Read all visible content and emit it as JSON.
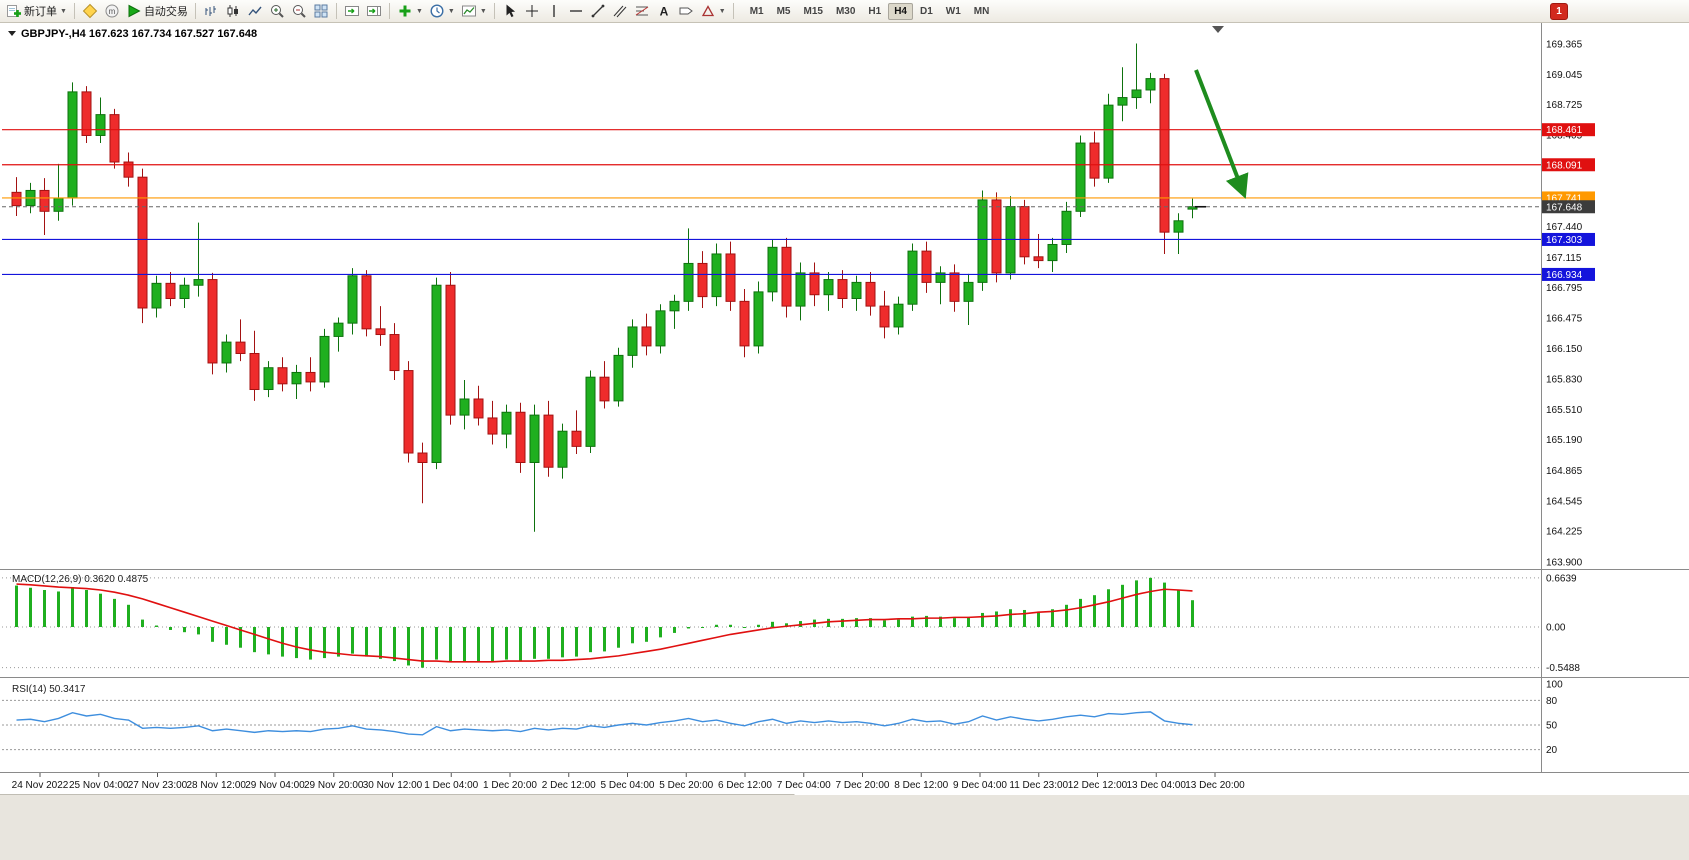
{
  "toolbar": {
    "new_order": "新订单",
    "auto_trading": "自动交易",
    "timeframes": [
      "M1",
      "M5",
      "M15",
      "M30",
      "H1",
      "H4",
      "D1",
      "W1",
      "MN"
    ],
    "active_timeframe": "H4",
    "notification_count": "1"
  },
  "chart": {
    "symbol": "GBPJPY-",
    "period": "H4",
    "title_overlay": "GBPJPY-,H4 167.623 167.734 167.527 167.648"
  },
  "chart_data": {
    "type": "candlestick",
    "symbol": "GBPJPY-",
    "period": "H4",
    "ohlc_current": {
      "open": 167.623,
      "high": 167.734,
      "low": 167.527,
      "close": 167.648
    },
    "colors": {
      "up": "#1FAF1F",
      "up_dark": "#0E720E",
      "down": "#EE2C2C",
      "down_dark": "#A31212",
      "line_red": "#E01010",
      "line_blue": "#1414DC",
      "line_orange": "#FF9900",
      "current_price": "#3C3C3C",
      "macd_bar": "#1FAF1F",
      "macd_signal": "#E01010",
      "rsi_line": "#3E8EDE",
      "arrow": "#1E8C1E"
    },
    "hlines": [
      {
        "price": 168.461,
        "label": "168.461",
        "color": "#E01010"
      },
      {
        "price": 168.091,
        "label": "168.091",
        "color": "#E01010"
      },
      {
        "price": 167.741,
        "label": "167.741",
        "color": "#FF9900"
      },
      {
        "price": 167.303,
        "label": "167.303",
        "color": "#1414DC"
      },
      {
        "price": 166.934,
        "label": "166.934",
        "color": "#1414DC"
      }
    ],
    "current_price": {
      "price": 167.648,
      "label": "167.648"
    },
    "price_axis_labels": [
      169.365,
      169.045,
      168.725,
      168.405,
      167.44,
      167.115,
      166.795,
      166.475,
      166.15,
      165.83,
      165.51,
      165.19,
      164.865,
      164.545,
      164.225,
      163.9
    ],
    "time_labels": [
      "24 Nov 2022",
      "25 Nov 04:00",
      "27 Nov 23:00",
      "28 Nov 12:00",
      "29 Nov 04:00",
      "29 Nov 20:00",
      "30 Nov 12:00",
      "1 Dec 04:00",
      "1 Dec 20:00",
      "2 Dec 12:00",
      "5 Dec 04:00",
      "5 Dec 20:00",
      "6 Dec 12:00",
      "7 Dec 04:00",
      "7 Dec 20:00",
      "8 Dec 12:00",
      "9 Dec 04:00",
      "11 Dec 23:00",
      "12 Dec 12:00",
      "13 Dec 04:00",
      "13 Dec 20:00"
    ],
    "candles": [
      [
        167.8,
        167.96,
        167.55,
        167.66
      ],
      [
        167.66,
        167.9,
        167.58,
        167.82
      ],
      [
        167.82,
        167.95,
        167.35,
        167.6
      ],
      [
        167.6,
        168.1,
        167.5,
        167.74
      ],
      [
        167.74,
        168.96,
        167.66,
        168.86
      ],
      [
        168.86,
        168.92,
        168.32,
        168.4
      ],
      [
        168.4,
        168.8,
        168.32,
        168.62
      ],
      [
        168.62,
        168.68,
        168.05,
        168.12
      ],
      [
        168.12,
        168.22,
        167.86,
        167.96
      ],
      [
        167.96,
        168.05,
        166.42,
        166.58
      ],
      [
        166.58,
        166.92,
        166.48,
        166.84
      ],
      [
        166.84,
        166.96,
        166.6,
        166.68
      ],
      [
        166.68,
        166.9,
        166.58,
        166.82
      ],
      [
        166.82,
        167.48,
        166.7,
        166.88
      ],
      [
        166.88,
        166.95,
        165.88,
        166.0
      ],
      [
        166.0,
        166.3,
        165.9,
        166.22
      ],
      [
        166.22,
        166.46,
        166.02,
        166.1
      ],
      [
        166.1,
        166.34,
        165.6,
        165.72
      ],
      [
        165.72,
        166.02,
        165.64,
        165.95
      ],
      [
        165.95,
        166.06,
        165.7,
        165.78
      ],
      [
        165.78,
        165.98,
        165.62,
        165.9
      ],
      [
        165.9,
        166.06,
        165.7,
        165.8
      ],
      [
        165.8,
        166.36,
        165.74,
        166.28
      ],
      [
        166.28,
        166.48,
        166.12,
        166.42
      ],
      [
        166.42,
        167.0,
        166.3,
        166.92
      ],
      [
        166.92,
        166.98,
        166.28,
        166.36
      ],
      [
        166.36,
        166.6,
        166.18,
        166.3
      ],
      [
        166.3,
        166.42,
        165.82,
        165.92
      ],
      [
        165.92,
        166.02,
        164.95,
        165.05
      ],
      [
        165.05,
        165.16,
        164.52,
        164.95
      ],
      [
        164.95,
        166.9,
        164.88,
        166.82
      ],
      [
        166.82,
        166.96,
        165.35,
        165.45
      ],
      [
        165.45,
        165.82,
        165.3,
        165.62
      ],
      [
        165.62,
        165.76,
        165.34,
        165.42
      ],
      [
        165.42,
        165.6,
        165.14,
        165.25
      ],
      [
        165.25,
        165.56,
        165.1,
        165.48
      ],
      [
        165.48,
        165.58,
        164.84,
        164.95
      ],
      [
        164.95,
        165.56,
        164.22,
        165.45
      ],
      [
        165.45,
        165.6,
        164.8,
        164.9
      ],
      [
        164.9,
        165.36,
        164.78,
        165.28
      ],
      [
        165.28,
        165.5,
        165.04,
        165.12
      ],
      [
        165.12,
        165.92,
        165.05,
        165.85
      ],
      [
        165.85,
        166.02,
        165.52,
        165.6
      ],
      [
        165.6,
        166.16,
        165.54,
        166.08
      ],
      [
        166.08,
        166.46,
        165.95,
        166.38
      ],
      [
        166.38,
        166.52,
        166.08,
        166.18
      ],
      [
        166.18,
        166.62,
        166.1,
        166.55
      ],
      [
        166.55,
        166.72,
        166.36,
        166.65
      ],
      [
        166.65,
        167.42,
        166.55,
        167.05
      ],
      [
        167.05,
        167.18,
        166.58,
        166.7
      ],
      [
        166.7,
        167.26,
        166.6,
        167.15
      ],
      [
        167.15,
        167.28,
        166.55,
        166.65
      ],
      [
        166.65,
        166.78,
        166.06,
        166.18
      ],
      [
        166.18,
        166.86,
        166.1,
        166.75
      ],
      [
        166.75,
        167.3,
        166.65,
        167.22
      ],
      [
        167.22,
        167.32,
        166.48,
        166.6
      ],
      [
        166.6,
        167.06,
        166.45,
        166.95
      ],
      [
        166.95,
        167.06,
        166.6,
        166.72
      ],
      [
        166.72,
        166.96,
        166.55,
        166.88
      ],
      [
        166.88,
        166.98,
        166.58,
        166.68
      ],
      [
        166.68,
        166.92,
        166.55,
        166.85
      ],
      [
        166.85,
        166.96,
        166.5,
        166.6
      ],
      [
        166.6,
        166.76,
        166.26,
        166.38
      ],
      [
        166.38,
        166.7,
        166.3,
        166.62
      ],
      [
        166.62,
        167.26,
        166.55,
        167.18
      ],
      [
        167.18,
        167.28,
        166.74,
        166.85
      ],
      [
        166.85,
        167.02,
        166.62,
        166.95
      ],
      [
        166.95,
        167.04,
        166.54,
        166.65
      ],
      [
        166.65,
        166.94,
        166.4,
        166.85
      ],
      [
        166.85,
        167.82,
        166.76,
        167.72
      ],
      [
        167.72,
        167.8,
        166.85,
        166.95
      ],
      [
        166.95,
        167.76,
        166.88,
        167.65
      ],
      [
        167.65,
        167.72,
        167.04,
        167.12
      ],
      [
        167.12,
        167.36,
        167.0,
        167.08
      ],
      [
        167.08,
        167.32,
        166.96,
        167.25
      ],
      [
        167.25,
        167.7,
        167.16,
        167.6
      ],
      [
        167.6,
        168.4,
        167.54,
        168.32
      ],
      [
        168.32,
        168.44,
        167.86,
        167.95
      ],
      [
        167.95,
        168.84,
        167.9,
        168.72
      ],
      [
        168.72,
        169.12,
        168.55,
        168.8
      ],
      [
        168.8,
        169.37,
        168.68,
        168.88
      ],
      [
        168.88,
        169.06,
        168.74,
        169.0
      ],
      [
        169.0,
        169.05,
        167.15,
        167.38
      ],
      [
        167.38,
        167.58,
        167.15,
        167.5
      ],
      [
        167.623,
        167.734,
        167.527,
        167.648
      ]
    ],
    "macd": {
      "label": "MACD(12,26,9)",
      "value_main": "0.3620",
      "value_signal": "0.4875",
      "scale": [
        "0.6639",
        "0.00",
        "-0.5488"
      ],
      "scale_values": [
        0.6639,
        0,
        -0.5488
      ],
      "histogram": [
        0.56,
        0.53,
        0.5,
        0.48,
        0.54,
        0.5,
        0.45,
        0.38,
        0.3,
        0.1,
        0.02,
        -0.04,
        -0.07,
        -0.1,
        -0.2,
        -0.24,
        -0.28,
        -0.34,
        -0.37,
        -0.4,
        -0.42,
        -0.44,
        -0.42,
        -0.4,
        -0.36,
        -0.4,
        -0.43,
        -0.46,
        -0.52,
        -0.55,
        -0.44,
        -0.47,
        -0.46,
        -0.46,
        -0.46,
        -0.44,
        -0.46,
        -0.43,
        -0.43,
        -0.41,
        -0.4,
        -0.34,
        -0.33,
        -0.28,
        -0.22,
        -0.2,
        -0.14,
        -0.08,
        -0.02,
        0.0,
        0.03,
        0.03,
        0.0,
        0.03,
        0.07,
        0.05,
        0.08,
        0.1,
        0.11,
        0.11,
        0.12,
        0.12,
        0.09,
        0.1,
        0.14,
        0.15,
        0.14,
        0.12,
        0.13,
        0.19,
        0.21,
        0.24,
        0.23,
        0.21,
        0.24,
        0.3,
        0.38,
        0.43,
        0.51,
        0.57,
        0.63,
        0.6639,
        0.6,
        0.5,
        0.362
      ],
      "signal": [
        0.58,
        0.57,
        0.555,
        0.54,
        0.53,
        0.52,
        0.5,
        0.47,
        0.43,
        0.38,
        0.32,
        0.26,
        0.2,
        0.14,
        0.08,
        0.02,
        -0.04,
        -0.1,
        -0.16,
        -0.22,
        -0.27,
        -0.31,
        -0.34,
        -0.36,
        -0.38,
        -0.39,
        -0.4,
        -0.42,
        -0.44,
        -0.46,
        -0.46,
        -0.47,
        -0.47,
        -0.47,
        -0.47,
        -0.46,
        -0.46,
        -0.46,
        -0.45,
        -0.45,
        -0.44,
        -0.43,
        -0.41,
        -0.39,
        -0.36,
        -0.33,
        -0.3,
        -0.26,
        -0.22,
        -0.18,
        -0.14,
        -0.1,
        -0.07,
        -0.04,
        -0.01,
        0.01,
        0.03,
        0.05,
        0.07,
        0.08,
        0.09,
        0.1,
        0.1,
        0.11,
        0.11,
        0.12,
        0.12,
        0.13,
        0.13,
        0.14,
        0.15,
        0.17,
        0.18,
        0.2,
        0.21,
        0.23,
        0.26,
        0.3,
        0.34,
        0.39,
        0.44,
        0.48,
        0.51,
        0.5,
        0.4875
      ]
    },
    "rsi": {
      "label": "RSI(14)",
      "value": "50.3417",
      "scale": [
        "100",
        "80",
        "50",
        "20"
      ],
      "levels": [
        80,
        50,
        20
      ],
      "values": [
        56,
        57,
        54,
        58,
        65,
        61,
        63,
        58,
        56,
        46,
        47,
        46,
        47,
        49,
        43,
        45,
        43,
        41,
        43,
        42,
        43,
        42,
        45,
        46,
        49,
        45,
        44,
        42,
        39,
        38,
        48,
        43,
        45,
        44,
        43,
        44,
        42,
        46,
        44,
        46,
        45,
        49,
        47,
        50,
        52,
        50,
        53,
        55,
        58,
        54,
        56,
        52,
        49,
        54,
        57,
        52,
        55,
        53,
        55,
        53,
        54,
        52,
        49,
        52,
        57,
        54,
        55,
        51,
        54,
        61,
        56,
        60,
        57,
        55,
        57,
        60,
        62,
        60,
        64,
        63,
        65,
        66,
        55,
        52,
        50.34
      ]
    }
  }
}
